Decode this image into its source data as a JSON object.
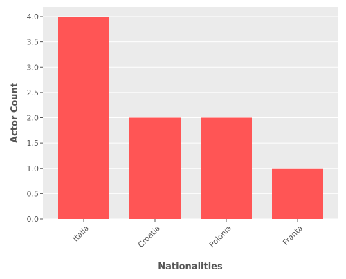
{
  "chart_data": {
    "type": "bar",
    "title": "",
    "xlabel": "Nationalities",
    "ylabel": "Actor Count",
    "categories": [
      "Italia",
      "Croatia",
      "Polonia",
      "Franta"
    ],
    "values": [
      4,
      2,
      2,
      1
    ],
    "ylim": [
      0,
      4.0
    ],
    "yticks": [
      0.0,
      0.5,
      1.0,
      1.5,
      2.0,
      2.5,
      3.0,
      3.5,
      4.0
    ],
    "ytick_labels": [
      "0.0",
      "0.5",
      "1.0",
      "1.5",
      "2.0",
      "2.5",
      "3.0",
      "3.5",
      "4.0"
    ],
    "grid": true,
    "legend": "none",
    "colors": {
      "bar": "#ff5555",
      "panel_background": "#ebebeb",
      "grid": "#ffffff",
      "text": "#555555"
    }
  }
}
